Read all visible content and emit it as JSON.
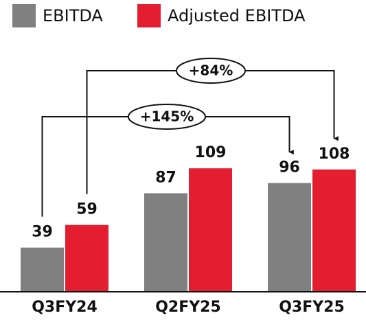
{
  "chart_data": {
    "type": "bar",
    "categories": [
      "Q3FY24",
      "Q2FY25",
      "Q3FY25"
    ],
    "series": [
      {
        "name": "EBITDA",
        "color": "#808080",
        "values": [
          39,
          87,
          96
        ]
      },
      {
        "name": "Adjusted EBITDA",
        "color": "#e31e30",
        "values": [
          59,
          109,
          108
        ]
      }
    ],
    "ylim": [
      0,
      120
    ],
    "annotations": [
      "+84%",
      "+145%"
    ]
  }
}
